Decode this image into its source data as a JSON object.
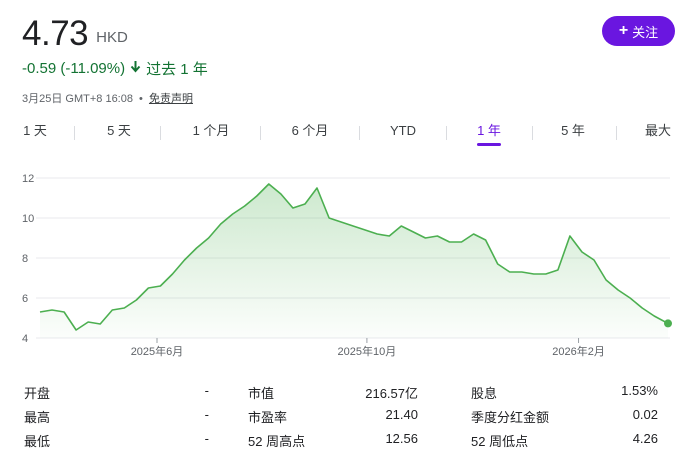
{
  "quote": {
    "price": "4.73",
    "currency": "HKD",
    "change": "-0.59 (-11.09%)",
    "change_arrow": "arrow-down-icon",
    "period": "过去 1 年",
    "timestamp": "3月25日 GMT+8 16:08",
    "separator": "•",
    "disclaimer": "免责声明"
  },
  "follow_button": {
    "icon": "plus-icon",
    "label": "关注",
    "color": "#6a16e0"
  },
  "tabs": [
    {
      "label": "1 天"
    },
    {
      "label": "5 天"
    },
    {
      "label": "1 个月"
    },
    {
      "label": "6 个月"
    },
    {
      "label": "YTD"
    },
    {
      "label": "1 年"
    },
    {
      "label": "5 年"
    },
    {
      "label": "最大"
    }
  ],
  "active_tab": "1 年",
  "colors": {
    "accent": "#6a16e0",
    "up_down": "#137333",
    "line": "#4caf50"
  },
  "chart_data": {
    "type": "area",
    "x": [
      "2025-03-25",
      "2025-04-01",
      "2025-04-08",
      "2025-04-15",
      "2025-04-22",
      "2025-04-29",
      "2025-05-06",
      "2025-05-13",
      "2025-05-20",
      "2025-05-27",
      "2025-06-03",
      "2025-06-10",
      "2025-06-17",
      "2025-06-24",
      "2025-07-01",
      "2025-07-08",
      "2025-07-15",
      "2025-07-22",
      "2025-07-29",
      "2025-08-05",
      "2025-08-12",
      "2025-08-19",
      "2025-08-26",
      "2025-09-02",
      "2025-09-09",
      "2025-09-16",
      "2025-09-23",
      "2025-09-30",
      "2025-10-07",
      "2025-10-14",
      "2025-10-21",
      "2025-10-28",
      "2025-11-04",
      "2025-11-11",
      "2025-11-18",
      "2025-11-25",
      "2025-12-02",
      "2025-12-09",
      "2025-12-16",
      "2025-12-23",
      "2025-12-30",
      "2026-01-06",
      "2026-01-13",
      "2026-01-20",
      "2026-01-27",
      "2026-02-03",
      "2026-02-10",
      "2026-02-17",
      "2026-02-24",
      "2026-03-03",
      "2026-03-10",
      "2026-03-17",
      "2026-03-25"
    ],
    "series": [
      {
        "values": [
          5.3,
          5.4,
          5.3,
          4.4,
          4.8,
          4.7,
          5.4,
          5.5,
          5.9,
          6.5,
          6.6,
          7.2,
          7.9,
          8.5,
          9.0,
          9.7,
          10.2,
          10.6,
          11.1,
          11.7,
          11.2,
          10.5,
          10.7,
          11.5,
          10.0,
          9.8,
          9.6,
          9.4,
          9.2,
          9.1,
          9.6,
          9.3,
          9.0,
          9.1,
          8.8,
          8.8,
          9.2,
          8.9,
          7.7,
          7.3,
          7.3,
          7.2,
          7.2,
          7.4,
          9.1,
          8.3,
          7.9,
          6.9,
          6.4,
          6.0,
          5.5,
          5.1,
          4.73
        ]
      }
    ],
    "x_ticks": [
      "2025年6月",
      "2025年10月",
      "2026年2月"
    ],
    "y_ticks": [
      4,
      6,
      8,
      10,
      12
    ],
    "ylim": [
      4,
      12.6
    ],
    "grid": "horizontal"
  },
  "stats": [
    {
      "label": "开盘",
      "value": "-"
    },
    {
      "label": "最高",
      "value": "-"
    },
    {
      "label": "最低",
      "value": "-"
    },
    {
      "label": "市值",
      "value": "216.57亿"
    },
    {
      "label": "市盈率",
      "value": "21.40"
    },
    {
      "label": "52 周高点",
      "value": "12.56"
    },
    {
      "label": "股息",
      "value": "1.53%"
    },
    {
      "label": "季度分红金额",
      "value": "0.02"
    },
    {
      "label": "52 周低点",
      "value": "4.26"
    }
  ]
}
